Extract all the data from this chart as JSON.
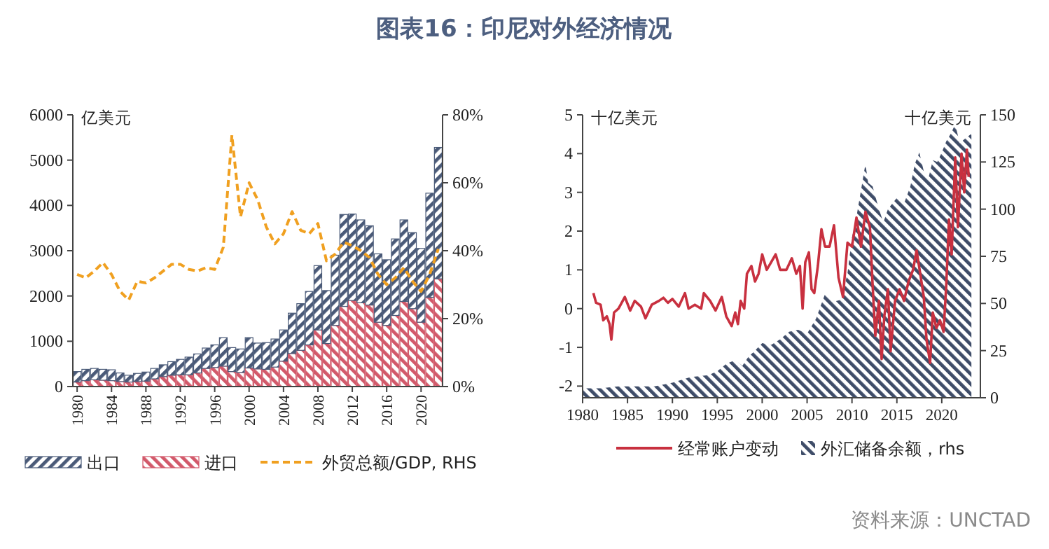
{
  "chart_data": [
    {
      "type": "bar",
      "title": "图表16：印尼对外经济情况",
      "ylabel": "亿美元",
      "stacked": true,
      "legend": "bottom",
      "grid": false,
      "categories": [
        "1980",
        null,
        null,
        null,
        "1984",
        null,
        null,
        null,
        "1988",
        null,
        null,
        null,
        "1992",
        null,
        null,
        null,
        "1996",
        null,
        null,
        null,
        "2000",
        null,
        null,
        null,
        "2004",
        null,
        null,
        null,
        "2008",
        null,
        null,
        null,
        "2012",
        null,
        null,
        null,
        "2016",
        null,
        null,
        null,
        "2020",
        null,
        null
      ],
      "ylim": [
        0,
        6000
      ],
      "yticks": [
        0,
        1000,
        2000,
        3000,
        4000,
        5000,
        6000
      ],
      "y2lim": [
        0,
        80
      ],
      "y2ticks": [
        {
          "value": 0,
          "label": "0%"
        },
        {
          "value": 20,
          "label": "20%"
        },
        {
          "value": 40,
          "label": "40%"
        },
        {
          "value": 60,
          "label": "60%"
        },
        {
          "value": 80,
          "label": "80%"
        }
      ],
      "series": [
        {
          "name": "进口",
          "color": "#d2596a",
          "values": [
            100,
            130,
            150,
            140,
            130,
            110,
            100,
            110,
            120,
            170,
            220,
            250,
            260,
            260,
            300,
            400,
            420,
            450,
            330,
            310,
            410,
            390,
            380,
            430,
            560,
            730,
            800,
            920,
            1250,
            950,
            1350,
            1770,
            1900,
            1850,
            1800,
            1420,
            1350,
            1570,
            1880,
            1720,
            1420,
            1970,
            2380
          ]
        },
        {
          "name": "出口",
          "color": "#4a5a78",
          "values": [
            230,
            250,
            250,
            240,
            240,
            190,
            150,
            180,
            200,
            230,
            260,
            300,
            340,
            390,
            420,
            450,
            500,
            630,
            530,
            520,
            670,
            570,
            590,
            620,
            690,
            890,
            1030,
            1180,
            1420,
            1170,
            1550,
            2030,
            1910,
            1830,
            1750,
            1510,
            1450,
            1690,
            1800,
            1680,
            1630,
            2300,
            2900
          ]
        },
        {
          "name": "外贸总额/GDP, RHS",
          "type": "line",
          "axis": "y2",
          "line_style": "dashed",
          "color": "#f0a020",
          "values": [
            33,
            32,
            34,
            36.5,
            33,
            28,
            25.5,
            31,
            30.5,
            32,
            34,
            36,
            36,
            34.5,
            34,
            35,
            34.5,
            41,
            74,
            50,
            60,
            55,
            47,
            42,
            45,
            51.5,
            46,
            45,
            48,
            37,
            39,
            42.5,
            41.5,
            40,
            38,
            33,
            30,
            32,
            35,
            31,
            28,
            33,
            40.5
          ]
        }
      ]
    },
    {
      "type": "line",
      "ylabel": "十亿美元",
      "y2label": "十亿美元",
      "legend": "bottom",
      "grid": false,
      "xlim": [
        1980,
        2024.3
      ],
      "xticks": [
        1980,
        1985,
        1990,
        1995,
        2000,
        2005,
        2010,
        2015,
        2020
      ],
      "ylim": [
        -2.3,
        5
      ],
      "yticks": [
        -2,
        -1,
        0,
        1,
        2,
        3,
        4,
        5
      ],
      "y2lim": [
        0,
        150
      ],
      "y2ticks": [
        0,
        25,
        50,
        75,
        100,
        125,
        150
      ],
      "annotations": [
        "资料来源：UNCTAD"
      ],
      "series": [
        {
          "name": "经常账户变动",
          "color": "#c8303f",
          "x": [
            1981.2,
            1981.5,
            1982,
            1982.3,
            1982.7,
            1983,
            1983.2,
            1983.5,
            1984,
            1984.7,
            1985.3,
            1985.8,
            1986.5,
            1987,
            1987.7,
            1988.5,
            1989,
            1989.5,
            1990,
            1990.7,
            1991.4,
            1991.8,
            1992.5,
            1993.2,
            1993.5,
            1994.2,
            1994.8,
            1995.5,
            1996,
            1996.6,
            1997,
            1997.3,
            1997.6,
            1998,
            1998.3,
            1998.8,
            1999.2,
            1999.6,
            2000,
            2000.5,
            2001,
            2001.5,
            2002,
            2002.7,
            2003.3,
            2003.8,
            2004.2,
            2004.5,
            2004.8,
            2005.2,
            2005.5,
            2005.8,
            2006.2,
            2006.6,
            2007,
            2007.5,
            2008,
            2008.5,
            2009,
            2009.5,
            2010,
            2010.5,
            2011,
            2011.5,
            2012,
            2012.3,
            2012.6,
            2013,
            2013.3,
            2013.6,
            2014,
            2014.3,
            2014.8,
            2015.3,
            2015.8,
            2016.3,
            2016.8,
            2017.2,
            2017.6,
            2018,
            2018.3,
            2018.7,
            2019,
            2019.4,
            2019.8,
            2020.2,
            2020.5,
            2020.8,
            2021.1,
            2021.5,
            2021.8,
            2022.2,
            2022.5,
            2022.8,
            2023
          ],
          "values": [
            0.4,
            0.15,
            0.1,
            -0.3,
            -0.2,
            -0.4,
            -0.8,
            -0.1,
            0.0,
            0.3,
            -0.05,
            0.2,
            0.05,
            -0.25,
            0.1,
            0.2,
            0.28,
            0.15,
            0.25,
            0.05,
            0.4,
            0.0,
            0.1,
            0.0,
            0.4,
            0.2,
            -0.05,
            0.3,
            -0.2,
            -0.45,
            -0.1,
            -0.4,
            0.2,
            0.0,
            0.9,
            1.1,
            0.7,
            0.9,
            1.4,
            1.0,
            1.2,
            1.4,
            1.0,
            1.0,
            1.3,
            0.9,
            1.1,
            0.0,
            1.2,
            1.45,
            0.5,
            0.4,
            1.1,
            2.05,
            1.6,
            1.6,
            2.15,
            0.8,
            0.3,
            1.7,
            1.6,
            2.35,
            1.6,
            2.5,
            2.1,
            0.6,
            -0.7,
            0.2,
            -1.3,
            -0.2,
            0.5,
            -1.1,
            0.2,
            0.5,
            0.2,
            0.7,
            1.0,
            1.5,
            0.9,
            0.3,
            -0.8,
            -1.4,
            -0.1,
            -0.5,
            -0.3,
            -0.6,
            0.6,
            2.3,
            1.4,
            3.9,
            2.1,
            4.0,
            3.0,
            4.1,
            3.4
          ]
        },
        {
          "name": "外汇储备余额，rhs",
          "type": "area",
          "axis": "y2",
          "color": "#3e4c68",
          "x": [
            1980,
            1982,
            1984,
            1986,
            1988,
            1990,
            1992,
            1994,
            1995,
            1996,
            1997,
            1997.8,
            1998.5,
            1999,
            2000,
            2001,
            2002,
            2003,
            2004,
            2005,
            2006,
            2007,
            2008,
            2008.8,
            2009.5,
            2010,
            2010.5,
            2011,
            2011.5,
            2011.8,
            2012.3,
            2013,
            2013.5,
            2014,
            2015,
            2015.8,
            2016.5,
            2017,
            2017.5,
            2018,
            2018.5,
            2019,
            2019.5,
            2020,
            2020.5,
            2021,
            2021.5,
            2022,
            2022.5,
            2023.3
          ],
          "values": [
            5,
            5,
            6,
            6,
            6,
            8,
            11,
            12,
            14,
            18,
            20,
            17,
            22,
            24,
            29,
            28,
            31,
            35,
            36,
            34,
            42,
            55,
            51,
            52,
            66,
            85,
            96,
            110,
            124,
            114,
            112,
            100,
            93,
            100,
            106,
            103,
            112,
            124,
            130,
            120,
            116,
            126,
            125,
            130,
            136,
            140,
            145,
            135,
            137,
            140
          ]
        }
      ]
    }
  ]
}
